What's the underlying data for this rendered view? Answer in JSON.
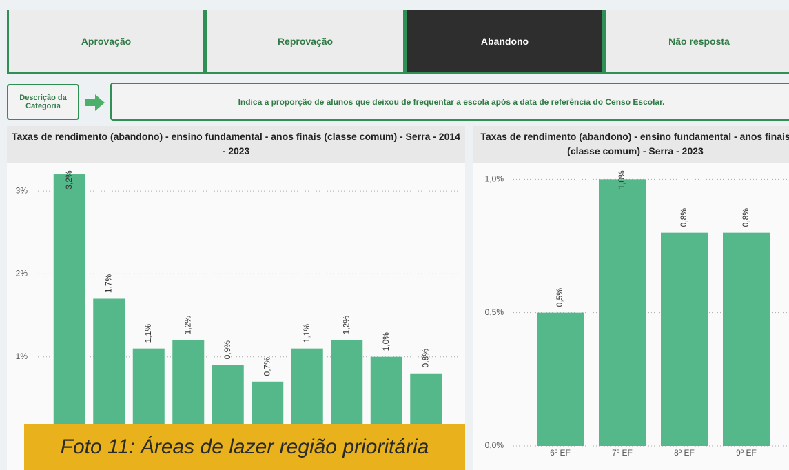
{
  "tabs": [
    "Aprovação",
    "Reprovação",
    "Abandono",
    "Não resposta"
  ],
  "active_tab": 2,
  "description": {
    "label": "Descrição da Categoria",
    "text": "Indica a proporção de alunos que deixou de frequentar a escola após a data de referência do Censo Escolar."
  },
  "chart_data": [
    {
      "type": "bar",
      "title": "Taxas de rendimento (abandono) - ensino fundamental - anos finais (classe comum) - Serra - 2014 - 2023",
      "categories": [
        null,
        null,
        null,
        null,
        null,
        null,
        null,
        null,
        null,
        null
      ],
      "values": [
        3.2,
        1.7,
        1.1,
        1.2,
        0.9,
        0.7,
        1.1,
        1.2,
        1.0,
        0.8
      ],
      "value_labels": [
        "3,2%",
        "1,7%",
        "1,1%",
        "1,2%",
        "0,9%",
        "0,7%",
        "1,1%",
        "1,2%",
        "1,0%",
        "0,8%"
      ],
      "color": "#55b88a",
      "ylim": [
        0,
        3.3
      ],
      "yticks": [
        {
          "value": 1,
          "label": "1%"
        },
        {
          "value": 2,
          "label": "2%"
        },
        {
          "value": 3,
          "label": "3%"
        }
      ],
      "grid": true
    },
    {
      "type": "bar",
      "title": "Taxas de rendimento (abandono) - ensino fundamental - anos finais (classe comum) - Serra - 2023",
      "categories": [
        "6º EF",
        "7º EF",
        "8º EF",
        "9º EF"
      ],
      "values": [
        0.5,
        1.0,
        0.8,
        0.8
      ],
      "value_labels": [
        "0,5%",
        "1,0%",
        "0,8%",
        "0,8%"
      ],
      "color": "#55b88a",
      "ylim": [
        0,
        1.05
      ],
      "yticks": [
        {
          "value": 0,
          "label": "0,0%"
        },
        {
          "value": 0.5,
          "label": "0,5%"
        },
        {
          "value": 1.0,
          "label": "1,0%"
        }
      ],
      "grid": true
    }
  ],
  "caption": "Foto 11: Áreas de lazer região prioritária"
}
